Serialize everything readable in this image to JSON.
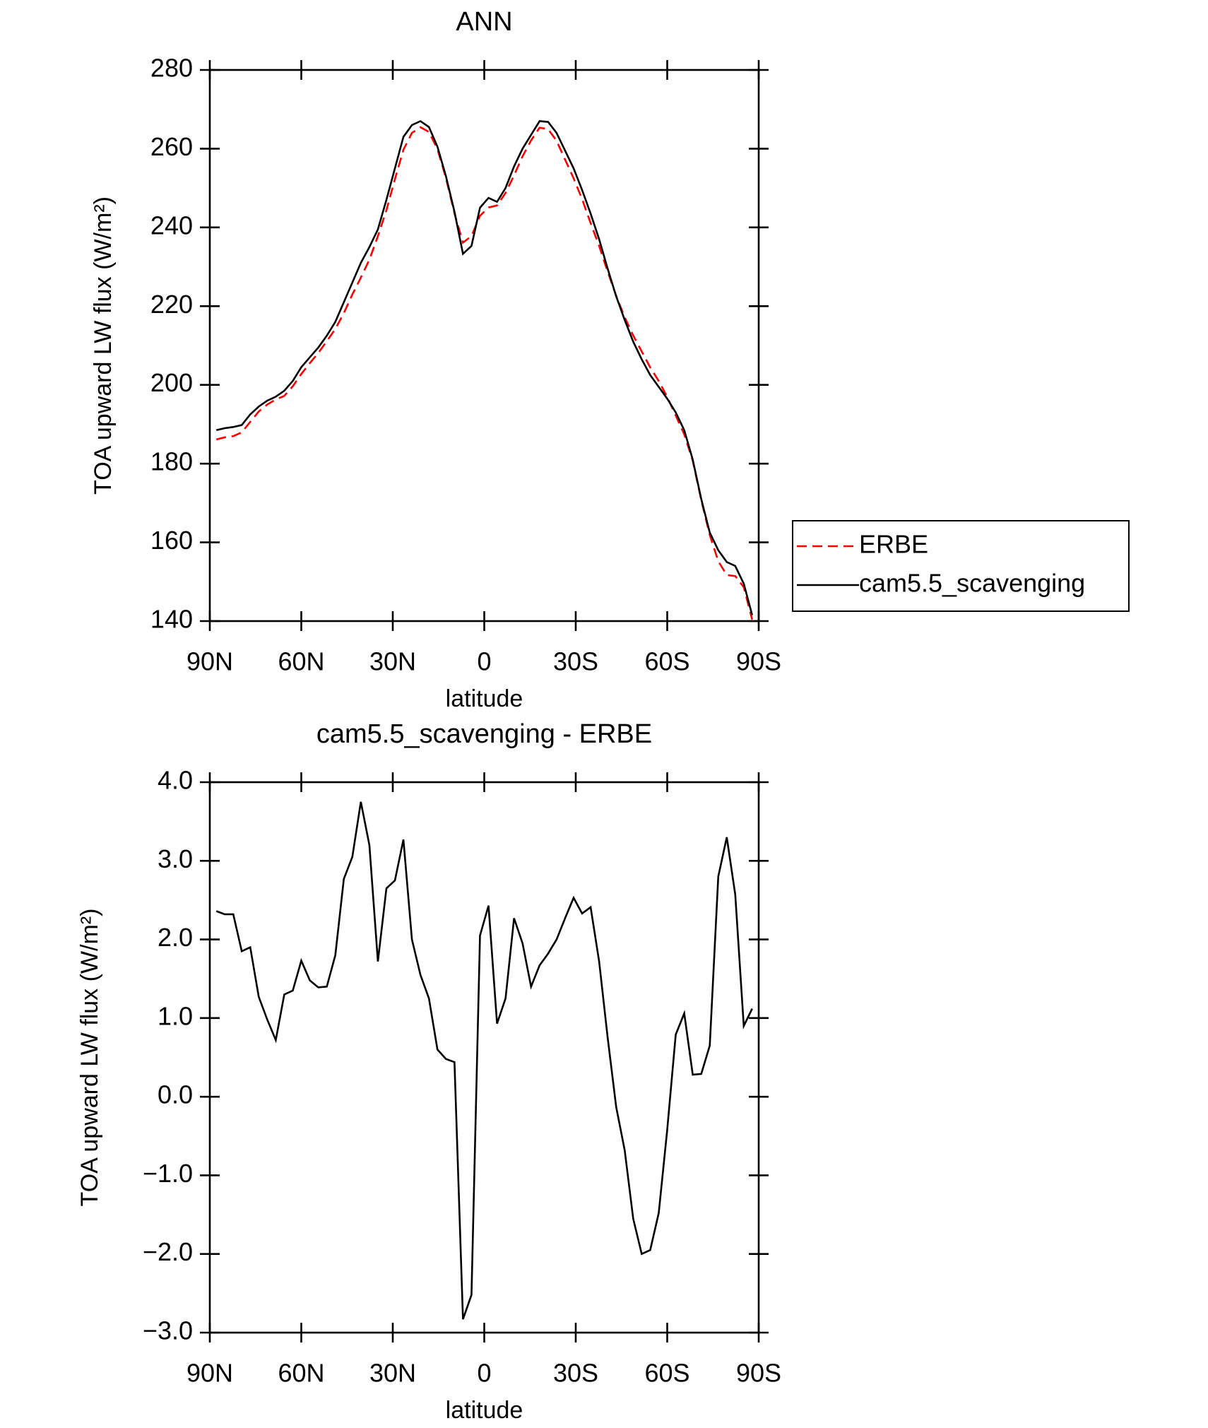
{
  "chart_data": [
    {
      "type": "line",
      "title": "ANN",
      "xlabel": "latitude",
      "ylabel": "TOA upward LW flux (W/m²)",
      "x": [
        87.86,
        85.1,
        82.31,
        79.53,
        76.74,
        73.95,
        71.16,
        68.37,
        65.58,
        62.79,
        60.0,
        57.21,
        54.42,
        51.63,
        48.84,
        46.05,
        43.26,
        40.47,
        37.67,
        34.88,
        32.09,
        29.3,
        26.51,
        23.72,
        20.93,
        18.14,
        15.35,
        12.56,
        9.77,
        6.98,
        4.19,
        1.4,
        -1.4,
        -4.19,
        -6.98,
        -9.77,
        -12.56,
        -15.35,
        -18.14,
        -20.93,
        -23.72,
        -26.51,
        -29.3,
        -32.09,
        -34.88,
        -37.67,
        -40.47,
        -43.26,
        -46.05,
        -48.84,
        -51.63,
        -54.42,
        -57.21,
        -60.0,
        -62.79,
        -65.58,
        -68.37,
        -71.16,
        -73.95,
        -76.74,
        -79.53,
        -82.31,
        -85.1,
        -87.86
      ],
      "series": [
        {
          "name": "ERBE",
          "color": "#ff0000",
          "style": "dashed",
          "values": [
            186.14,
            186.68,
            186.98,
            187.95,
            190.6,
            193.23,
            195.02,
            196.28,
            197.2,
            199.65,
            202.77,
            205.52,
            208.11,
            211.1,
            214.2,
            218.23,
            222.95,
            227.25,
            231.8,
            237.78,
            244.35,
            252.25,
            259.73,
            264.0,
            265.45,
            264.25,
            259.9,
            252.52,
            243.56,
            236.13,
            237.82,
            242.95,
            245.07,
            245.57,
            248.75,
            253.23,
            258.05,
            262.1,
            265.33,
            264.98,
            262.0,
            257.23,
            252.47,
            247.17,
            241.09,
            235.28,
            228.75,
            222.63,
            217.18,
            212.55,
            208.5,
            204.45,
            200.98,
            196.92,
            192.21,
            187.44,
            180.72,
            170.71,
            161.85,
            155.2,
            151.7,
            151.43,
            148.6,
            140.38
          ]
        },
        {
          "name": "cam5.5_scavenging",
          "color": "#000000",
          "style": "solid",
          "values": [
            188.5,
            189,
            189.3,
            189.8,
            192.5,
            194.5,
            196,
            197,
            198.5,
            201,
            204.5,
            207,
            209.5,
            212.5,
            216,
            221,
            226,
            231,
            235,
            239.5,
            247,
            255,
            263,
            266,
            267,
            265.5,
            260.5,
            253,
            244,
            233.3,
            235.3,
            245,
            247.5,
            246.5,
            250,
            255.5,
            260,
            263.5,
            267,
            266.8,
            264,
            259.5,
            255,
            249.5,
            243.5,
            237,
            229.5,
            222.5,
            216.5,
            211,
            206.5,
            202.5,
            199.5,
            196.5,
            193,
            188.5,
            181,
            171,
            162.5,
            158,
            155,
            154,
            149.5,
            141.5
          ]
        }
      ],
      "xlim": [
        90,
        -90
      ],
      "xticks": [
        {
          "value": 90,
          "label": "90N"
        },
        {
          "value": 60,
          "label": "60N"
        },
        {
          "value": 30,
          "label": "30N"
        },
        0,
        {
          "value": -30,
          "label": "30S"
        },
        {
          "value": -60,
          "label": "60S"
        },
        {
          "value": -90,
          "label": "90S"
        }
      ],
      "ylim": [
        140,
        280
      ],
      "yticks": [
        140,
        160,
        180,
        200,
        220,
        240,
        260,
        280
      ],
      "legend": "right"
    },
    {
      "type": "line",
      "title": "cam5.5_scavenging - ERBE",
      "xlabel": "latitude",
      "ylabel": "TOA upward LW flux (W/m²)",
      "x": [
        87.86,
        85.1,
        82.31,
        79.53,
        76.74,
        73.95,
        71.16,
        68.37,
        65.58,
        62.79,
        60.0,
        57.21,
        54.42,
        51.63,
        48.84,
        46.05,
        43.26,
        40.47,
        37.67,
        34.88,
        32.09,
        29.3,
        26.51,
        23.72,
        20.93,
        18.14,
        15.35,
        12.56,
        9.77,
        6.98,
        4.19,
        1.4,
        -1.4,
        -4.19,
        -6.98,
        -9.77,
        -12.56,
        -15.35,
        -18.14,
        -20.93,
        -23.72,
        -26.51,
        -29.3,
        -32.09,
        -34.88,
        -37.67,
        -40.47,
        -43.26,
        -46.05,
        -48.84,
        -51.63,
        -54.42,
        -57.21,
        -60.0,
        -62.79,
        -65.58,
        -68.37,
        -71.16,
        -73.95,
        -76.74,
        -79.53,
        -82.31,
        -85.1,
        -87.86
      ],
      "series": [
        {
          "color": "#000000",
          "style": "solid",
          "values": [
            2.36,
            2.32,
            2.32,
            1.85,
            1.9,
            1.27,
            0.98,
            0.72,
            1.3,
            1.35,
            1.73,
            1.48,
            1.39,
            1.4,
            1.8,
            2.77,
            3.05,
            3.75,
            3.2,
            1.72,
            2.65,
            2.75,
            3.27,
            2.0,
            1.55,
            1.25,
            0.6,
            0.48,
            0.44,
            -2.83,
            -2.52,
            2.05,
            2.43,
            0.93,
            1.25,
            2.27,
            1.95,
            1.4,
            1.67,
            1.82,
            2.0,
            2.27,
            2.53,
            2.33,
            2.41,
            1.72,
            0.75,
            -0.13,
            -0.68,
            -1.55,
            -2.0,
            -1.95,
            -1.48,
            -0.42,
            0.79,
            1.06,
            0.28,
            0.29,
            0.65,
            2.8,
            3.3,
            2.57,
            0.9,
            1.12
          ]
        }
      ],
      "xlim": [
        90,
        -90
      ],
      "xticks": [
        {
          "value": 90,
          "label": "90N"
        },
        {
          "value": 60,
          "label": "60N"
        },
        {
          "value": 30,
          "label": "30N"
        },
        0,
        {
          "value": -30,
          "label": "30S"
        },
        {
          "value": -60,
          "label": "60S"
        },
        {
          "value": -90,
          "label": "90S"
        }
      ],
      "ylim": [
        -3,
        4
      ],
      "yticks": [
        {
          "value": -3,
          "label": "−3.0"
        },
        {
          "value": -2,
          "label": "−2.0"
        },
        {
          "value": -1,
          "label": "−1.0"
        },
        {
          "value": 0,
          "label": "0.0"
        },
        {
          "value": 1,
          "label": "1.0"
        },
        {
          "value": 2,
          "label": "2.0"
        },
        {
          "value": 3,
          "label": "3.0"
        },
        {
          "value": 4,
          "label": "4.0"
        }
      ]
    }
  ]
}
